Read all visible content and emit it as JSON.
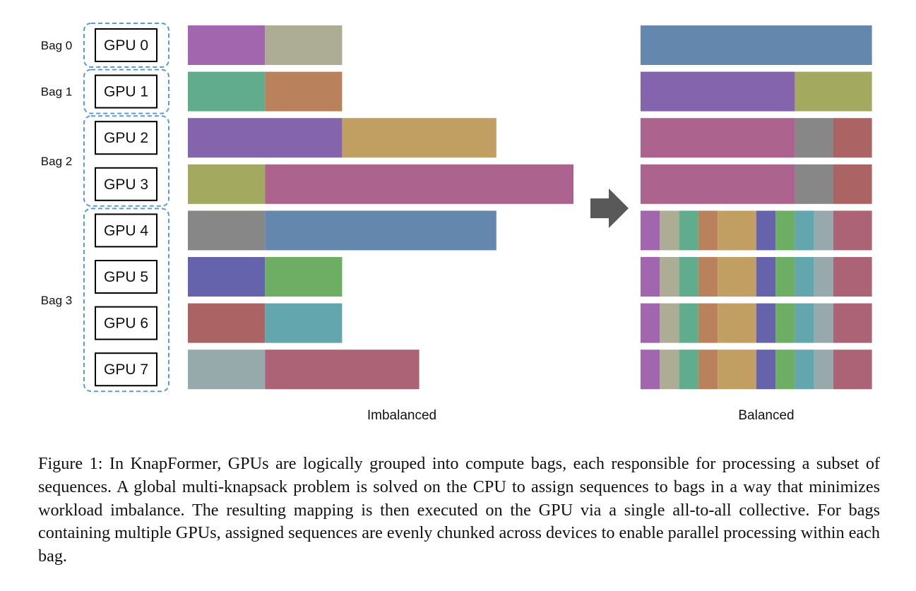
{
  "bags": [
    {
      "label": "Bag 0",
      "gpus": [
        "GPU 0"
      ]
    },
    {
      "label": "Bag 1",
      "gpus": [
        "GPU 1"
      ]
    },
    {
      "label": "Bag 2",
      "gpus": [
        "GPU 2",
        "GPU 3"
      ]
    },
    {
      "label": "Bag 3",
      "gpus": [
        "GPU 4",
        "GPU 5",
        "GPU 6",
        "GPU 7"
      ]
    }
  ],
  "imbalanced": {
    "label": "Imbalanced",
    "rows": [
      [
        {
          "len": 2,
          "color": "#a266af"
        },
        {
          "len": 2,
          "color": "#adad95"
        }
      ],
      [
        {
          "len": 2,
          "color": "#60ac8c"
        },
        {
          "len": 2,
          "color": "#b9825d"
        }
      ],
      [
        {
          "len": 4,
          "color": "#8364ad"
        },
        {
          "len": 4,
          "color": "#c19f62"
        }
      ],
      [
        {
          "len": 2,
          "color": "#a3aa5f"
        },
        {
          "len": 8,
          "color": "#ac638e"
        }
      ],
      [
        {
          "len": 2,
          "color": "#878787"
        },
        {
          "len": 6,
          "color": "#6387ad"
        }
      ],
      [
        {
          "len": 2,
          "color": "#6663ad"
        },
        {
          "len": 2,
          "color": "#6dad64"
        }
      ],
      [
        {
          "len": 2,
          "color": "#ac6364"
        },
        {
          "len": 2,
          "color": "#63a6ad"
        }
      ],
      [
        {
          "len": 2,
          "color": "#97aaab"
        },
        {
          "len": 4,
          "color": "#ac6375"
        }
      ]
    ]
  },
  "balanced": {
    "label": "Balanced",
    "rows": [
      [
        {
          "len": 6,
          "color": "#6387ad"
        }
      ],
      [
        {
          "len": 4,
          "color": "#8364ad"
        },
        {
          "len": 2,
          "color": "#a3aa5f"
        }
      ],
      [
        {
          "len": 4,
          "color": "#ac638e"
        },
        {
          "len": 1,
          "color": "#878787"
        },
        {
          "len": 1,
          "color": "#ac6364"
        }
      ],
      [
        {
          "len": 4,
          "color": "#ac638e"
        },
        {
          "len": 1,
          "color": "#878787"
        },
        {
          "len": 1,
          "color": "#ac6364"
        }
      ],
      [
        {
          "len": 0.5,
          "color": "#a266af"
        },
        {
          "len": 0.5,
          "color": "#adad95"
        },
        {
          "len": 0.5,
          "color": "#60ac8c"
        },
        {
          "len": 0.5,
          "color": "#b9825d"
        },
        {
          "len": 1,
          "color": "#c19f62"
        },
        {
          "len": 0.5,
          "color": "#6663ad"
        },
        {
          "len": 0.5,
          "color": "#6dad64"
        },
        {
          "len": 0.5,
          "color": "#63a6ad"
        },
        {
          "len": 0.5,
          "color": "#97aaab"
        },
        {
          "len": 1,
          "color": "#ac6375"
        }
      ],
      [
        {
          "len": 0.5,
          "color": "#a266af"
        },
        {
          "len": 0.5,
          "color": "#adad95"
        },
        {
          "len": 0.5,
          "color": "#60ac8c"
        },
        {
          "len": 0.5,
          "color": "#b9825d"
        },
        {
          "len": 1,
          "color": "#c19f62"
        },
        {
          "len": 0.5,
          "color": "#6663ad"
        },
        {
          "len": 0.5,
          "color": "#6dad64"
        },
        {
          "len": 0.5,
          "color": "#63a6ad"
        },
        {
          "len": 0.5,
          "color": "#97aaab"
        },
        {
          "len": 1,
          "color": "#ac6375"
        }
      ],
      [
        {
          "len": 0.5,
          "color": "#a266af"
        },
        {
          "len": 0.5,
          "color": "#adad95"
        },
        {
          "len": 0.5,
          "color": "#60ac8c"
        },
        {
          "len": 0.5,
          "color": "#b9825d"
        },
        {
          "len": 1,
          "color": "#c19f62"
        },
        {
          "len": 0.5,
          "color": "#6663ad"
        },
        {
          "len": 0.5,
          "color": "#6dad64"
        },
        {
          "len": 0.5,
          "color": "#63a6ad"
        },
        {
          "len": 0.5,
          "color": "#97aaab"
        },
        {
          "len": 1,
          "color": "#ac6375"
        }
      ],
      [
        {
          "len": 0.5,
          "color": "#a266af"
        },
        {
          "len": 0.5,
          "color": "#adad95"
        },
        {
          "len": 0.5,
          "color": "#60ac8c"
        },
        {
          "len": 0.5,
          "color": "#b9825d"
        },
        {
          "len": 1,
          "color": "#c19f62"
        },
        {
          "len": 0.5,
          "color": "#6663ad"
        },
        {
          "len": 0.5,
          "color": "#6dad64"
        },
        {
          "len": 0.5,
          "color": "#63a6ad"
        },
        {
          "len": 0.5,
          "color": "#97aaab"
        },
        {
          "len": 1,
          "color": "#ac6375"
        }
      ]
    ]
  },
  "colors": {
    "bag_border": "#5b9bd5",
    "arrow": "#595959",
    "gpu_border": "#000000"
  },
  "caption": "Figure 1: In KnapFormer, GPUs are logically grouped into compute bags, each responsible for processing a subset of sequences. A global multi-knapsack problem is solved on the CPU to assign sequences to bags in a way that minimizes workload imbalance.  The resulting mapping is then executed on the GPU via a single all-to-all collective. For bags containing multiple GPUs, assigned sequences are evenly chunked across devices to enable parallel processing within each bag."
}
